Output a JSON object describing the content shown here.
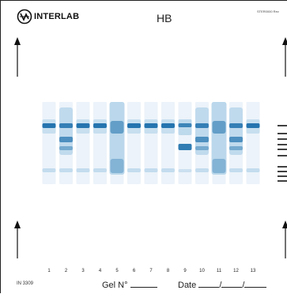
{
  "header": {
    "brand": "INTERLAB",
    "title": "HB",
    "reference": "STER0000 Rev"
  },
  "icons": [
    "interlab-logo-icon",
    "arrow-up-icon",
    "scale-tick-marks"
  ],
  "lanes": [
    {
      "number": "1",
      "pattern": "normal"
    },
    {
      "number": "2",
      "pattern": "heterozygote"
    },
    {
      "number": "3",
      "pattern": "normal"
    },
    {
      "number": "4",
      "pattern": "normal"
    },
    {
      "number": "5",
      "pattern": "smear"
    },
    {
      "number": "6",
      "pattern": "normal"
    },
    {
      "number": "7",
      "pattern": "normal"
    },
    {
      "number": "8",
      "pattern": "normal"
    },
    {
      "number": "9",
      "pattern": "variant"
    },
    {
      "number": "10",
      "pattern": "heterozygote"
    },
    {
      "number": "11",
      "pattern": "smear"
    },
    {
      "number": "12",
      "pattern": "heterozygote"
    },
    {
      "number": "13",
      "pattern": "normal"
    }
  ],
  "footer": {
    "code": "IN 3309",
    "gel_label": "Gel N°",
    "date_label": "Date",
    "date_sep": "/"
  },
  "colors": {
    "band": "#1c6fab",
    "band_light": "#a9cde6",
    "band_faint": "#dceaf5",
    "ink": "#222222"
  }
}
